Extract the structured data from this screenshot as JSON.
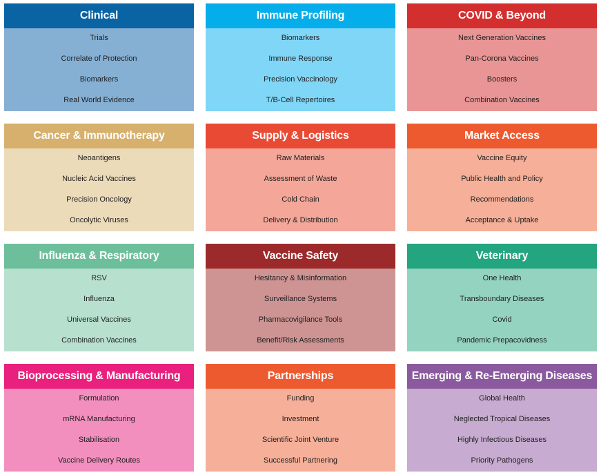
{
  "cards": [
    {
      "title": "Clinical",
      "head_color": "#0a64a4",
      "body_color": "#85b0d4",
      "items": [
        "Trials",
        "Correlate of Protection",
        "Biomarkers",
        "Real World Evidence"
      ]
    },
    {
      "title": "Immune Profiling",
      "head_color": "#05aeea",
      "body_color": "#80d6f7",
      "items": [
        "Biomarkers",
        "Immune Response",
        "Precision Vaccinology",
        "T/B-Cell Repertoires"
      ]
    },
    {
      "title": "COVID & Beyond",
      "head_color": "#d32f2f",
      "body_color": "#e99595",
      "items": [
        "Next Generation Vaccines",
        "Pan-Corona Vaccines",
        "Boosters",
        "Combination Vaccines"
      ]
    },
    {
      "title": "Cancer & Immunotherapy",
      "head_color": "#d6b06c",
      "body_color": "#ecdbb9",
      "items": [
        "Neoantigens",
        "Nucleic Acid Vaccines",
        "Precision Oncology",
        "Oncolytic Viruses"
      ]
    },
    {
      "title": "Supply & Logistics",
      "head_color": "#e84a34",
      "body_color": "#f4a699",
      "items": [
        "Raw Materials",
        "Assessment of Waste",
        "Cold Chain",
        "Delivery & Distribution"
      ]
    },
    {
      "title": "Market Access",
      "head_color": "#ed5a2f",
      "body_color": "#f6af98",
      "items": [
        "Vaccine Equity",
        "Public Health and Policy",
        "Recommendations",
        "Acceptance & Uptake"
      ]
    },
    {
      "title": "Influenza & Respiratory",
      "head_color": "#6dbf9c",
      "body_color": "#b8e0cf",
      "items": [
        "RSV",
        "Influenza",
        "Universal Vaccines",
        "Combination Vaccines"
      ]
    },
    {
      "title": "Vaccine Safety",
      "head_color": "#9c2a2b",
      "body_color": "#cd9493",
      "items": [
        "Hesitancy & Misinformation",
        "Surveillance Systems",
        "Pharmacovigilance Tools",
        "Benefit/Risk Assessments"
      ]
    },
    {
      "title": "Veterinary",
      "head_color": "#23a57f",
      "body_color": "#94d3bf",
      "items": [
        "One Health",
        "Transboundary Diseases",
        "Covid",
        "Pandemic Prepacovidness"
      ]
    },
    {
      "title": "Bioprocessing & Manufacturing",
      "head_color": "#e9207d",
      "body_color": "#f38fbe",
      "items": [
        "Formulation",
        "mRNA Manufacturing",
        "Stabilisation",
        "Vaccine Delivery Routes"
      ]
    },
    {
      "title": "Partnerships",
      "head_color": "#ed5a2f",
      "body_color": "#f6af98",
      "items": [
        "Funding",
        "Investment",
        "Scientific Joint Venture",
        "Successful Partnering"
      ]
    },
    {
      "title": "Emerging & Re-Emerging Diseases",
      "head_color": "#8b5a9e",
      "body_color": "#c7abd0",
      "items": [
        "Global Health",
        "Neglected Tropical Diseases",
        "Highly Infectious Diseases",
        "Priority Pathogens"
      ]
    }
  ]
}
